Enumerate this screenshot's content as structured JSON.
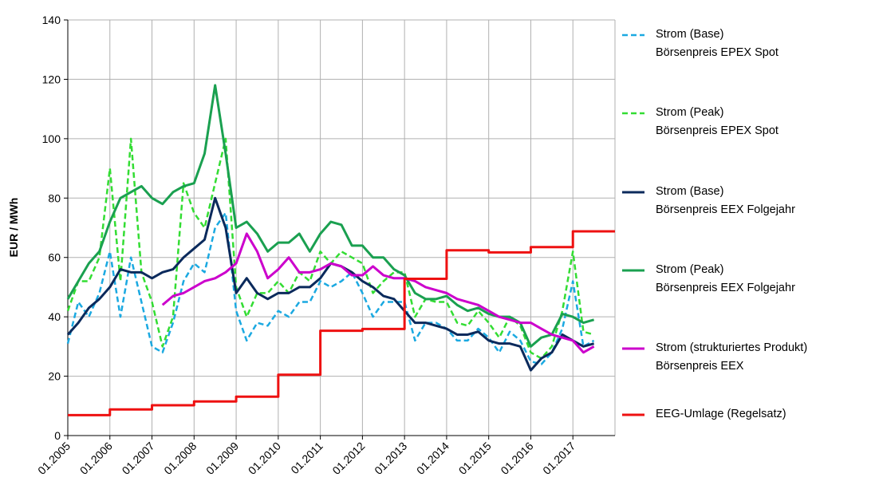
{
  "chart_data": {
    "type": "line",
    "y_label": "EUR / MWh",
    "x": [
      "01.2005",
      "04.2005",
      "07.2005",
      "10.2005",
      "01.2006",
      "04.2006",
      "07.2006",
      "10.2006",
      "01.2007",
      "04.2007",
      "07.2007",
      "10.2007",
      "01.2008",
      "04.2008",
      "07.2008",
      "10.2008",
      "01.2009",
      "04.2009",
      "07.2009",
      "10.2009",
      "01.2010",
      "04.2010",
      "07.2010",
      "10.2010",
      "01.2011",
      "04.2011",
      "07.2011",
      "10.2011",
      "01.2012",
      "04.2012",
      "07.2012",
      "10.2012",
      "01.2013",
      "04.2013",
      "07.2013",
      "10.2013",
      "01.2014",
      "04.2014",
      "07.2014",
      "10.2014",
      "01.2015",
      "04.2015",
      "07.2015",
      "10.2015",
      "01.2016",
      "04.2016",
      "07.2016",
      "10.2016",
      "01.2017",
      "04.2017",
      "07.2017"
    ],
    "xticks": [
      "01.2005",
      "01.2006",
      "01.2007",
      "01.2008",
      "01.2009",
      "01.2010",
      "01.2011",
      "01.2012",
      "01.2013",
      "01.2014",
      "01.2015",
      "01.2016",
      "01.2017"
    ],
    "ylim": [
      0,
      140
    ],
    "yticks": [
      0,
      20,
      40,
      60,
      80,
      100,
      120,
      140
    ],
    "grid": true,
    "series": [
      {
        "name": "Strom (Base)\nBörsenpreis EPEX Spot",
        "color": "#1ba9e1",
        "dash": true,
        "values": [
          31,
          45,
          40,
          48,
          62,
          40,
          60,
          45,
          30,
          28,
          38,
          52,
          58,
          55,
          70,
          75,
          42,
          32,
          38,
          37,
          42,
          40,
          45,
          45,
          52,
          50,
          52,
          55,
          48,
          40,
          45,
          45,
          45,
          32,
          38,
          38,
          36,
          32,
          32,
          36,
          33,
          28,
          35,
          32,
          25,
          24,
          28,
          36,
          52,
          30,
          32
        ]
      },
      {
        "name": "Strom (Peak)\nBörsenpreis EPEX Spot",
        "color": "#33dd33",
        "dash": true,
        "values": [
          42,
          52,
          52,
          60,
          90,
          52,
          100,
          55,
          45,
          30,
          40,
          85,
          75,
          70,
          85,
          100,
          50,
          40,
          48,
          48,
          52,
          48,
          55,
          52,
          62,
          58,
          62,
          60,
          58,
          48,
          52,
          55,
          55,
          40,
          46,
          45,
          45,
          38,
          37,
          42,
          38,
          33,
          40,
          37,
          28,
          26,
          30,
          42,
          62,
          35,
          34
        ]
      },
      {
        "name": "Strom (Base)\nBörsenpreis EEX Folgejahr",
        "color": "#0b2a5c",
        "values": [
          34,
          38,
          43,
          46,
          50,
          56,
          55,
          55,
          53,
          55,
          56,
          60,
          63,
          66,
          80,
          70,
          48,
          53,
          48,
          46,
          48,
          48,
          50,
          50,
          53,
          58,
          57,
          55,
          52,
          50,
          47,
          46,
          42,
          38,
          38,
          37,
          36,
          34,
          34,
          35,
          32,
          31,
          31,
          30,
          22,
          26,
          28,
          34,
          32,
          30,
          31
        ]
      },
      {
        "name": "Strom (Peak)\nBörsenpreis EEX Folgejahr",
        "color": "#1aa050",
        "values": [
          46,
          52,
          58,
          62,
          72,
          80,
          82,
          84,
          80,
          78,
          82,
          84,
          85,
          95,
          118,
          95,
          70,
          72,
          68,
          62,
          65,
          65,
          68,
          62,
          68,
          72,
          71,
          64,
          64,
          60,
          60,
          56,
          54,
          48,
          46,
          46,
          47,
          44,
          42,
          43,
          41,
          40,
          40,
          38,
          30,
          33,
          34,
          41,
          40,
          38,
          39
        ]
      },
      {
        "name": "Strom (strukturiertes Produkt)\nBörsenpreis EEX",
        "color": "#cc00cc",
        "values": [
          null,
          null,
          null,
          null,
          null,
          null,
          null,
          null,
          null,
          44,
          47,
          48,
          50,
          52,
          53,
          55,
          58,
          68,
          62,
          53,
          56,
          60,
          55,
          55,
          56,
          58,
          57,
          54,
          54,
          57,
          54,
          53,
          53,
          52,
          50,
          49,
          48,
          46,
          45,
          44,
          42,
          40,
          39,
          38,
          38,
          36,
          34,
          33,
          32,
          28,
          30
        ]
      },
      {
        "name": "EEG-Umlage (Regelsatz)",
        "color": "#ee1111",
        "step": true,
        "values": [
          6.9,
          6.9,
          6.9,
          6.9,
          8.8,
          8.8,
          8.8,
          8.8,
          10.2,
          10.2,
          10.2,
          10.2,
          11.5,
          11.5,
          11.5,
          11.5,
          13.1,
          13.1,
          13.1,
          13.1,
          20.5,
          20.5,
          20.5,
          20.5,
          35.3,
          35.3,
          35.3,
          35.3,
          35.9,
          35.9,
          35.9,
          35.9,
          52.8,
          52.8,
          52.8,
          52.8,
          62.4,
          62.4,
          62.4,
          62.4,
          61.7,
          61.7,
          61.7,
          61.7,
          63.5,
          63.5,
          63.5,
          63.5,
          68.8,
          68.8,
          68.8
        ]
      }
    ]
  }
}
